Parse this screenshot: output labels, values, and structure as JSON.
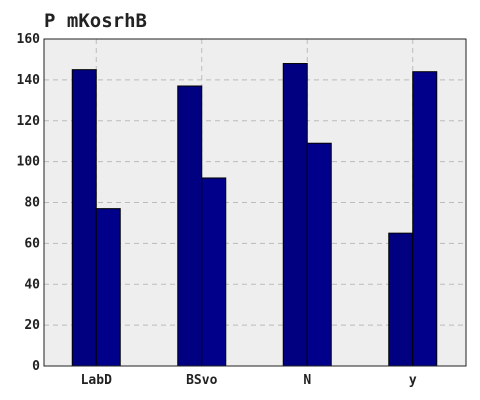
{
  "chart_data": {
    "type": "bar",
    "title": "P mKosrhB",
    "xlabel": "",
    "ylabel": "",
    "categories": [
      "LabD",
      "BSvo",
      "N",
      "y"
    ],
    "series": [
      {
        "values": [
          145,
          137,
          148,
          65
        ]
      },
      {
        "values": [
          77,
          92,
          109,
          144
        ]
      }
    ],
    "ylim": [
      0,
      160
    ],
    "yticks": [
      0,
      20,
      40,
      60,
      80,
      100,
      120,
      140,
      160
    ],
    "grid": true,
    "legend": "none",
    "colors": {
      "series": [
        "#000080",
        "#00008b"
      ],
      "background": "#eeeeee",
      "grid": "#bbbbbb"
    }
  }
}
